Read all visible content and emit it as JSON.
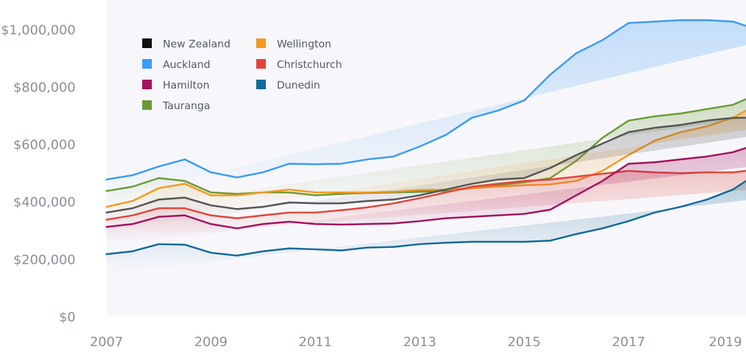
{
  "chart_data": {
    "type": "line",
    "title": "",
    "xlabel": "",
    "ylabel": "",
    "xlim": [
      2007,
      2019.25
    ],
    "ylim": [
      0,
      1100000
    ],
    "grid": false,
    "legend_position": "top-left",
    "x_ticks": [
      {
        "value": 2007,
        "label": "2007"
      },
      {
        "value": 2009,
        "label": "2009"
      },
      {
        "value": 2011,
        "label": "2011"
      },
      {
        "value": 2013,
        "label": "2013"
      },
      {
        "value": 2015,
        "label": "2015"
      },
      {
        "value": 2017,
        "label": "2017"
      },
      {
        "value": 2019,
        "label": "2019"
      }
    ],
    "y_ticks": [
      {
        "value": 0,
        "label": "$0"
      },
      {
        "value": 200000,
        "label": "$200,000"
      },
      {
        "value": 400000,
        "label": "$400,000"
      },
      {
        "value": 600000,
        "label": "$600,000"
      },
      {
        "value": 800000,
        "label": "$800,000"
      },
      {
        "value": 1000000,
        "label": "$1,000,000"
      }
    ],
    "x": [
      2007,
      2007.5,
      2008,
      2008.5,
      2009,
      2009.5,
      2010,
      2010.5,
      2011,
      2011.5,
      2012,
      2012.5,
      2013,
      2013.5,
      2014,
      2014.5,
      2015,
      2015.5,
      2016,
      2016.5,
      2017,
      2017.5,
      2018,
      2018.5,
      2019,
      2019.25
    ],
    "series": [
      {
        "name": "Auckland",
        "color": "#3b9cf2",
        "values": [
          475000,
          490000,
          520000,
          545000,
          500000,
          482000,
          500000,
          530000,
          528000,
          530000,
          545000,
          555000,
          590000,
          630000,
          690000,
          715000,
          750000,
          840000,
          915000,
          960000,
          1020000,
          1025000,
          1030000,
          1030000,
          1025000,
          1010000
        ]
      },
      {
        "name": "Tauranga",
        "color": "#6a9b35",
        "values": [
          435000,
          450000,
          480000,
          470000,
          430000,
          425000,
          430000,
          430000,
          420000,
          425000,
          428000,
          430000,
          432000,
          435000,
          445000,
          455000,
          465000,
          480000,
          540000,
          620000,
          680000,
          695000,
          705000,
          720000,
          735000,
          755000
        ]
      },
      {
        "name": "Wellington",
        "color": "#f39a1f",
        "values": [
          380000,
          400000,
          445000,
          460000,
          420000,
          420000,
          430000,
          440000,
          430000,
          430000,
          430000,
          432000,
          438000,
          440000,
          445000,
          450000,
          455000,
          458000,
          470000,
          505000,
          560000,
          610000,
          640000,
          660000,
          690000,
          715000
        ]
      },
      {
        "name": "New Zealand",
        "color": "#555555",
        "values": [
          360000,
          375000,
          405000,
          412000,
          385000,
          372000,
          380000,
          395000,
          392000,
          392000,
          400000,
          405000,
          420000,
          440000,
          460000,
          475000,
          480000,
          515000,
          560000,
          600000,
          640000,
          655000,
          665000,
          680000,
          690000,
          690000
        ]
      },
      {
        "name": "Christchurch",
        "color": "#e0463a",
        "values": [
          335000,
          350000,
          375000,
          375000,
          350000,
          340000,
          350000,
          360000,
          360000,
          368000,
          378000,
          392000,
          410000,
          430000,
          450000,
          460000,
          470000,
          475000,
          485000,
          495000,
          505000,
          500000,
          497000,
          500000,
          500000,
          505000
        ]
      },
      {
        "name": "Hamilton",
        "color": "#a3125f",
        "values": [
          310000,
          320000,
          345000,
          350000,
          320000,
          305000,
          320000,
          328000,
          320000,
          318000,
          320000,
          322000,
          330000,
          340000,
          345000,
          350000,
          355000,
          370000,
          420000,
          470000,
          530000,
          535000,
          545000,
          555000,
          570000,
          585000
        ]
      },
      {
        "name": "Dunedin",
        "color": "#126a98",
        "values": [
          215000,
          225000,
          250000,
          248000,
          220000,
          210000,
          225000,
          235000,
          232000,
          228000,
          238000,
          240000,
          250000,
          255000,
          258000,
          258000,
          258000,
          262000,
          285000,
          305000,
          330000,
          360000,
          380000,
          405000,
          440000,
          470000
        ]
      }
    ],
    "legend": [
      {
        "name": "New Zealand",
        "color": "#111111"
      },
      {
        "name": "Wellington",
        "color": "#f39a1f"
      },
      {
        "name": "Auckland",
        "color": "#3b9cf2"
      },
      {
        "name": "Christchurch",
        "color": "#e0463a"
      },
      {
        "name": "Hamilton",
        "color": "#a3125f"
      },
      {
        "name": "Dunedin",
        "color": "#126a98"
      },
      {
        "name": "Tauranga",
        "color": "#6a9b35"
      }
    ]
  }
}
